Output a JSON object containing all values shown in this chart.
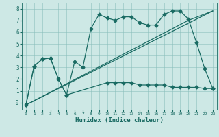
{
  "xlabel": "Humidex (Indice chaleur)",
  "bg_color": "#cde8e5",
  "line_color": "#1a6b63",
  "xlim": [
    -0.5,
    23.5
  ],
  "ylim": [
    -0.6,
    8.5
  ],
  "line1_x": [
    0,
    1,
    2,
    3,
    4,
    5,
    6,
    7,
    8,
    9,
    10,
    11,
    12,
    13,
    14,
    15,
    16,
    17,
    18,
    19,
    20,
    21,
    22,
    23
  ],
  "line1_y": [
    -0.2,
    3.1,
    3.7,
    3.8,
    2.0,
    0.65,
    3.5,
    3.0,
    6.3,
    7.5,
    7.2,
    7.0,
    7.3,
    7.3,
    6.8,
    6.6,
    6.6,
    7.5,
    7.8,
    7.8,
    7.1,
    5.1,
    2.9,
    1.2
  ],
  "line2_x": [
    0,
    1,
    2,
    3,
    4,
    5,
    10,
    11,
    12,
    13,
    14,
    15,
    16,
    17,
    18,
    19,
    20,
    21,
    22,
    23
  ],
  "line2_y": [
    -0.2,
    3.1,
    3.7,
    3.8,
    2.0,
    0.65,
    1.7,
    1.7,
    1.7,
    1.7,
    1.5,
    1.5,
    1.5,
    1.5,
    1.3,
    1.3,
    1.3,
    1.3,
    1.2,
    1.2
  ],
  "line3_x": [
    0,
    23
  ],
  "line3_y": [
    -0.2,
    7.8
  ],
  "line4_x": [
    0,
    20,
    23
  ],
  "line4_y": [
    -0.2,
    7.0,
    7.8
  ],
  "yticks": [
    0,
    1,
    2,
    3,
    4,
    5,
    6,
    7,
    8
  ],
  "ytick_labels": [
    "-0",
    "1",
    "2",
    "3",
    "4",
    "5",
    "6",
    "7",
    "8"
  ]
}
